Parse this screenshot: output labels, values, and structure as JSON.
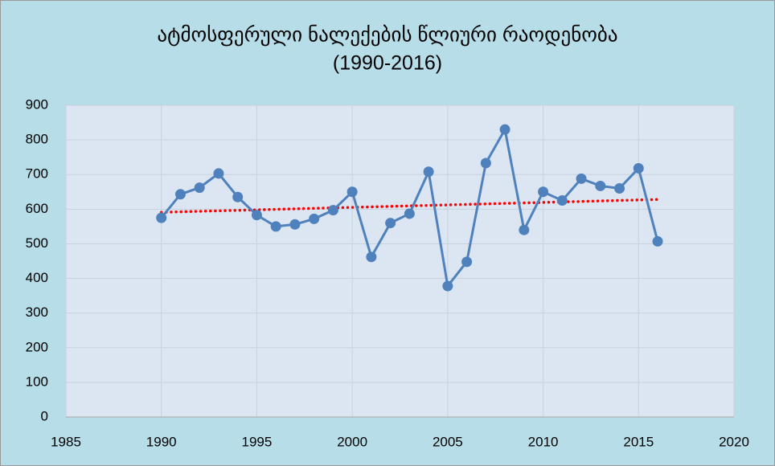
{
  "chart_data": {
    "type": "line",
    "title": [
      "ატმოსფერული ნალექების წლიური რაოდენობა",
      "(1990-2016)"
    ],
    "x": [
      1990,
      1991,
      1992,
      1993,
      1994,
      1995,
      1996,
      1997,
      1998,
      1999,
      2000,
      2001,
      2002,
      2003,
      2004,
      2005,
      2006,
      2007,
      2008,
      2009,
      2010,
      2011,
      2012,
      2013,
      2014,
      2015,
      2016
    ],
    "series": [
      {
        "color": "#4f81bd",
        "values": [
          575,
          643,
          662,
          703,
          635,
          583,
          550,
          556,
          572,
          597,
          650,
          462,
          560,
          587,
          708,
          378,
          448,
          733,
          830,
          540,
          650,
          625,
          688,
          667,
          660,
          718,
          507
        ]
      }
    ],
    "trendline": {
      "x": [
        1990,
        2016
      ],
      "values": [
        591,
        628
      ],
      "color": "#ff0000"
    },
    "xlim": [
      1985,
      2020
    ],
    "xticks": [
      1985,
      1990,
      1995,
      2000,
      2005,
      2010,
      2015,
      2020
    ],
    "ylim": [
      0,
      900
    ],
    "yticks": [
      0,
      100,
      200,
      300,
      400,
      500,
      600,
      700,
      800,
      900
    ],
    "grid": true
  }
}
